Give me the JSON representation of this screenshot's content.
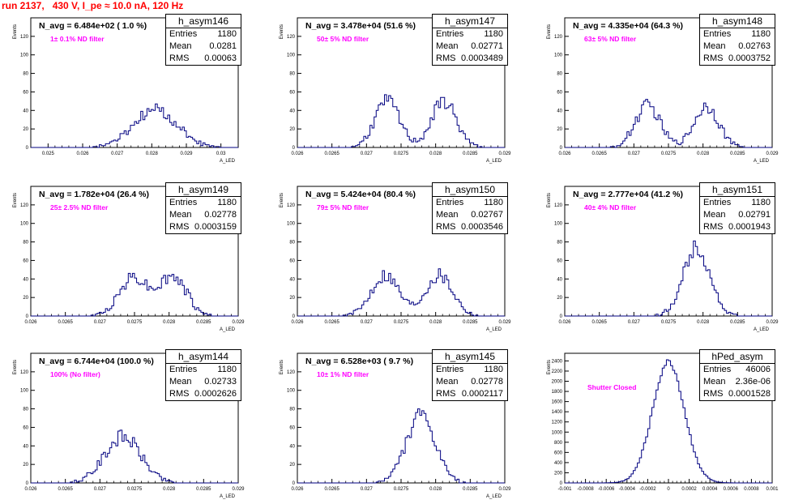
{
  "run_title": "run 2137,   430 V, I_pe ≈ 10.0 nA, 120 Hz",
  "colors": {
    "histogram": "#000080",
    "title": "#ff0000",
    "filter_label": "#ff00ff",
    "frame": "#000000"
  },
  "stats_labels": {
    "entries": "Entries",
    "mean": "Mean",
    "rms": "RMS"
  },
  "chart_data": [
    {
      "type": "histogram",
      "name": "h_asym146",
      "n_avg_label": "N_avg = 6.484e+02 ( 1.0 %)",
      "filter_label": "1± 0.1% ND filter",
      "stats": {
        "entries": "1180",
        "mean": "0.0281",
        "rms": "0.00063"
      },
      "xlabel": "A_LED",
      "ylabel": "Events",
      "xlim": [
        0.0245,
        0.0305
      ],
      "ylim": [
        0,
        140
      ],
      "xticks": [
        0.025,
        0.026,
        0.027,
        0.028,
        0.029,
        0.03
      ],
      "xtick_labels": [
        "0.025",
        "0.026",
        "0.027",
        "0.028",
        "0.029",
        "0.03"
      ],
      "yticks": [
        0,
        20,
        40,
        60,
        80,
        100,
        120
      ],
      "profile": {
        "kind": "gauss",
        "mu": 0.0281,
        "sigma": 0.00063,
        "peak": 40,
        "bins": 100,
        "seed": 146
      }
    },
    {
      "type": "histogram",
      "name": "h_asym147",
      "n_avg_label": "N_avg = 3.478e+04 (51.6 %)",
      "filter_label": "50± 5% ND filter",
      "stats": {
        "entries": "1180",
        "mean": "0.02771",
        "rms": "0.0003489"
      },
      "xlabel": "A_LED",
      "ylabel": "Events",
      "xlim": [
        0.026,
        0.029
      ],
      "ylim": [
        0,
        140
      ],
      "xticks": [
        0.026,
        0.0265,
        0.027,
        0.0275,
        0.028,
        0.0285,
        0.029
      ],
      "xtick_labels": [
        "0.026",
        "0.0265",
        "0.027",
        "0.0275",
        "0.028",
        "0.0285",
        "0.029"
      ],
      "yticks": [
        0,
        20,
        40,
        60,
        80,
        100,
        120
      ],
      "profile": {
        "kind": "double",
        "mu1": 0.0273,
        "mu2": 0.02812,
        "sigma": 0.00018,
        "peak": 50,
        "bins": 100,
        "seed": 147
      }
    },
    {
      "type": "histogram",
      "name": "h_asym148",
      "n_avg_label": "N_avg = 4.335e+04 (64.3 %)",
      "filter_label": "63± 5% ND filter",
      "stats": {
        "entries": "1180",
        "mean": "0.02763",
        "rms": "0.0003752"
      },
      "xlabel": "A_LED",
      "ylabel": "Events",
      "xlim": [
        0.026,
        0.029
      ],
      "ylim": [
        0,
        140
      ],
      "xticks": [
        0.026,
        0.0265,
        0.027,
        0.0275,
        0.028,
        0.0285,
        0.029
      ],
      "xtick_labels": [
        "0.026",
        "0.0265",
        "0.027",
        "0.0275",
        "0.028",
        "0.0285",
        "0.029"
      ],
      "yticks": [
        0,
        20,
        40,
        60,
        80,
        100,
        120
      ],
      "profile": {
        "kind": "double",
        "mu1": 0.0272,
        "mu2": 0.02805,
        "sigma": 0.00018,
        "peak": 45,
        "bins": 100,
        "seed": 148
      }
    },
    {
      "type": "histogram",
      "name": "h_asym149",
      "n_avg_label": "N_avg = 1.782e+04 (26.4 %)",
      "filter_label": "25± 2.5% ND filter",
      "stats": {
        "entries": "1180",
        "mean": "0.02778",
        "rms": "0.0003159"
      },
      "xlabel": "A_LED",
      "ylabel": "Events",
      "xlim": [
        0.026,
        0.029
      ],
      "ylim": [
        0,
        140
      ],
      "xticks": [
        0.026,
        0.0265,
        0.027,
        0.0275,
        0.028,
        0.0285,
        0.029
      ],
      "xtick_labels": [
        "0.026",
        "0.0265",
        "0.027",
        "0.0275",
        "0.028",
        "0.0285",
        "0.029"
      ],
      "yticks": [
        0,
        20,
        40,
        60,
        80,
        100,
        120
      ],
      "profile": {
        "kind": "double",
        "mu1": 0.02748,
        "mu2": 0.02805,
        "sigma": 0.0002,
        "peak": 42,
        "bins": 100,
        "seed": 149
      }
    },
    {
      "type": "histogram",
      "name": "h_asym150",
      "n_avg_label": "N_avg = 5.424e+04 (80.4 %)",
      "filter_label": "79± 5% ND filter",
      "stats": {
        "entries": "1180",
        "mean": "0.02767",
        "rms": "0.0003546"
      },
      "xlabel": "A_LED",
      "ylabel": "Events",
      "xlim": [
        0.026,
        0.029
      ],
      "ylim": [
        0,
        140
      ],
      "xticks": [
        0.026,
        0.0265,
        0.027,
        0.0275,
        0.028,
        0.0285,
        0.029
      ],
      "xtick_labels": [
        "0.026",
        "0.0265",
        "0.027",
        "0.0275",
        "0.028",
        "0.0285",
        "0.029"
      ],
      "yticks": [
        0,
        20,
        40,
        60,
        80,
        100,
        120
      ],
      "profile": {
        "kind": "double",
        "mu1": 0.02727,
        "mu2": 0.02805,
        "sigma": 0.0002,
        "peak": 45,
        "bins": 100,
        "seed": 150
      }
    },
    {
      "type": "histogram",
      "name": "h_asym151",
      "n_avg_label": "N_avg = 2.777e+04 (41.2 %)",
      "filter_label": "40± 4% ND filter",
      "stats": {
        "entries": "1180",
        "mean": "0.02791",
        "rms": "0.0001943"
      },
      "xlabel": "A_LED",
      "ylabel": "Events",
      "xlim": [
        0.026,
        0.029
      ],
      "ylim": [
        0,
        140
      ],
      "xticks": [
        0.026,
        0.0265,
        0.027,
        0.0275,
        0.028,
        0.0285,
        0.029
      ],
      "xtick_labels": [
        "0.026",
        "0.0265",
        "0.027",
        "0.0275",
        "0.028",
        "0.0285",
        "0.029"
      ],
      "yticks": [
        0,
        20,
        40,
        60,
        80,
        100,
        120
      ],
      "profile": {
        "kind": "gauss",
        "mu": 0.02791,
        "sigma": 0.00019,
        "peak": 75,
        "bins": 100,
        "seed": 151
      }
    },
    {
      "type": "histogram",
      "name": "h_asym144",
      "n_avg_label": "N_avg = 6.744e+04 (100.0 %)",
      "filter_label": "100% (No filter)",
      "stats": {
        "entries": "1180",
        "mean": "0.02733",
        "rms": "0.0002626"
      },
      "xlabel": "A_LED",
      "ylabel": "Events",
      "xlim": [
        0.026,
        0.029
      ],
      "ylim": [
        0,
        140
      ],
      "xticks": [
        0.026,
        0.0265,
        0.027,
        0.0275,
        0.028,
        0.0285,
        0.029
      ],
      "xtick_labels": [
        "0.026",
        "0.0265",
        "0.027",
        "0.0275",
        "0.028",
        "0.0285",
        "0.029"
      ],
      "yticks": [
        0,
        20,
        40,
        60,
        80,
        100,
        120
      ],
      "profile": {
        "kind": "gauss",
        "mu": 0.02733,
        "sigma": 0.00026,
        "peak": 50,
        "bins": 100,
        "seed": 144
      }
    },
    {
      "type": "histogram",
      "name": "h_asym145",
      "n_avg_label": "N_avg = 6.528e+03 ( 9.7 %)",
      "filter_label": "10± 1% ND filter",
      "stats": {
        "entries": "1180",
        "mean": "0.02778",
        "rms": "0.0002117"
      },
      "xlabel": "A_LED",
      "ylabel": "Events",
      "xlim": [
        0.026,
        0.029
      ],
      "ylim": [
        0,
        140
      ],
      "xticks": [
        0.026,
        0.0265,
        0.027,
        0.0275,
        0.028,
        0.0285,
        0.029
      ],
      "xtick_labels": [
        "0.026",
        "0.0265",
        "0.027",
        "0.0275",
        "0.028",
        "0.0285",
        "0.029"
      ],
      "yticks": [
        0,
        20,
        40,
        60,
        80,
        100,
        120
      ],
      "profile": {
        "kind": "gauss",
        "mu": 0.02778,
        "sigma": 0.00021,
        "peak": 72,
        "bins": 100,
        "seed": 145
      }
    },
    {
      "type": "histogram",
      "name": "hPed_asym",
      "n_avg_label": "",
      "filter_label": "Shutter Closed",
      "stats": {
        "entries": "46006",
        "mean": "2.36e-06",
        "rms": "0.0001528"
      },
      "xlabel": "",
      "ylabel": "Events",
      "xlim": [
        -0.001,
        0.001
      ],
      "ylim": [
        0,
        2550
      ],
      "xticks": [
        -0.001,
        -0.0008,
        -0.0006,
        -0.0004,
        -0.0002,
        0,
        0.0002,
        0.0004,
        0.0006,
        0.0008,
        0.001
      ],
      "xtick_labels": [
        "-0.001",
        "-0.0008",
        "-0.0006",
        "-0.0004",
        "-0.0002",
        "0",
        "0.0002",
        "0.0004",
        "0.0006",
        "0.0008",
        "0.001"
      ],
      "yticks": [
        0,
        200,
        400,
        600,
        800,
        1000,
        1200,
        1400,
        1600,
        1800,
        2000,
        2200,
        2400
      ],
      "profile": {
        "kind": "gauss",
        "mu": 0.0,
        "sigma": 0.000153,
        "peak": 2380,
        "bins": 100,
        "seed": 999
      }
    }
  ]
}
